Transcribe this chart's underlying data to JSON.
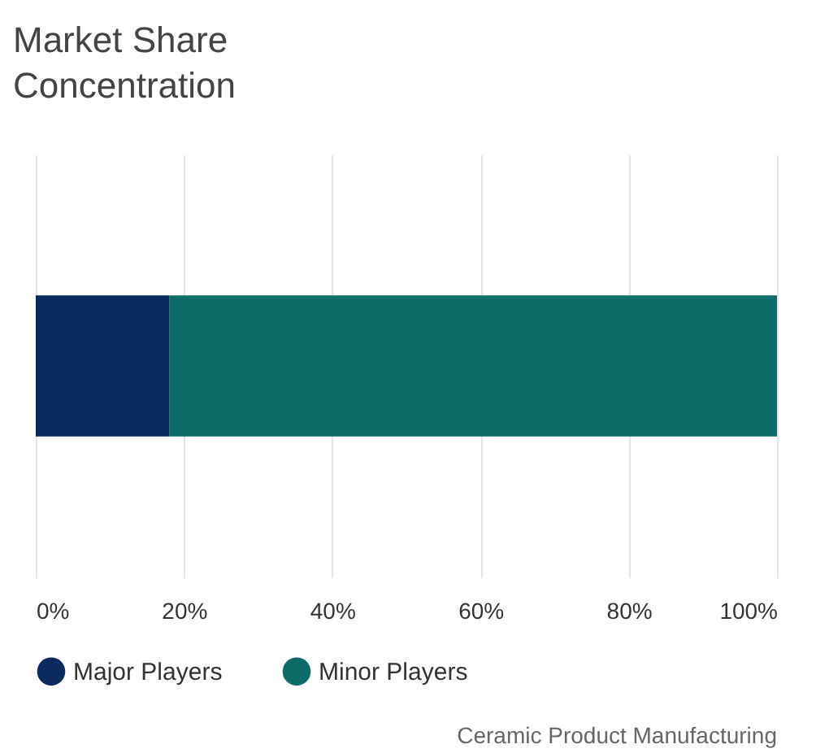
{
  "chart_data": {
    "type": "bar",
    "orientation": "horizontal",
    "stacked": true,
    "title": "Market Share Concentration",
    "categories": [
      null
    ],
    "series": [
      {
        "name": "Major Players",
        "color": "#0b2b5e",
        "values": [
          18
        ]
      },
      {
        "name": "Minor Players",
        "color": "#0d6b68",
        "values": [
          82
        ]
      }
    ],
    "xlim": [
      0,
      100
    ],
    "xticks": [
      {
        "value": 0,
        "label": "0%"
      },
      {
        "value": 20,
        "label": "20%"
      },
      {
        "value": 40,
        "label": "40%"
      },
      {
        "value": 60,
        "label": "60%"
      },
      {
        "value": 80,
        "label": "80%"
      },
      {
        "value": 100,
        "label": "100%"
      }
    ],
    "grid": "x",
    "legend": "bottom",
    "annotations": [
      "Ceramic Product Manufacturing"
    ]
  }
}
